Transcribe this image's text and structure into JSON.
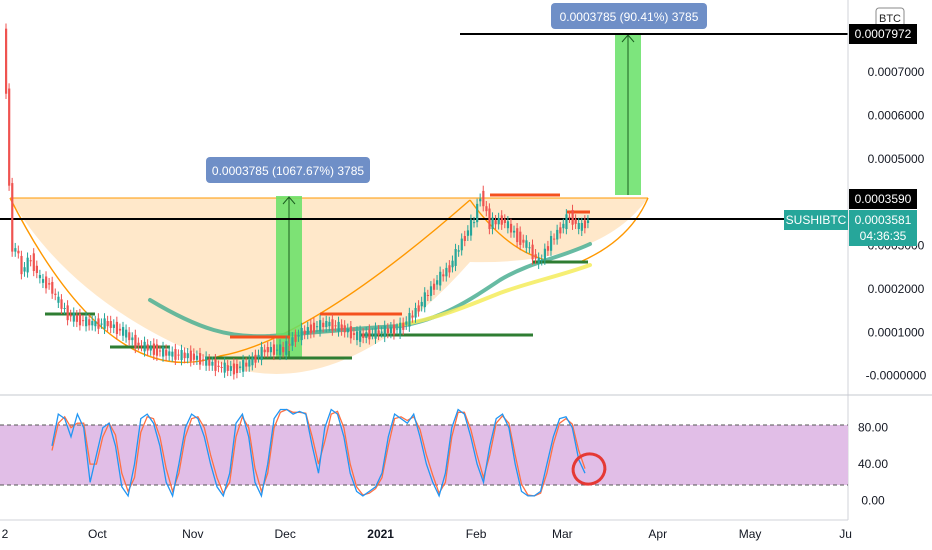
{
  "currency_badge": "BTC",
  "symbol_label": "SUSHIBTC",
  "current_price": "0.0003581",
  "countdown": "04:36:35",
  "resistance_price_label": "0.0003590",
  "target_price_label": "0.0007972",
  "colors": {
    "bull": "#26a69a",
    "bear": "#ef5350",
    "cup_fill": "#ffe0b8",
    "cup_line": "#ff9800",
    "measure_fill": "#66e066",
    "measure_label_bg": "#6f8fc7",
    "ma_fast": "#4caf93",
    "ma_slow": "#f5ec5c",
    "support_line": "#2e7d32",
    "resistance_marks": "#f4511e",
    "stoch_band": "#e1bee7",
    "stoch_k": "#2196f3",
    "stoch_d": "#ff7043",
    "annotation_circle": "#e53935",
    "symbol_tag_bg": "#26a69a"
  },
  "chart_data": [
    {
      "type": "line",
      "title": "SUSHIBTC",
      "x_ticks": [
        "2",
        "Oct",
        "Nov",
        "Dec",
        "2021",
        "Feb",
        "Mar",
        "Apr",
        "May",
        "Ju"
      ],
      "y_ticks": [
        "0.0007000",
        "0.0006000",
        "0.0005000",
        "0.0003000",
        "0.0002000",
        "0.0001000",
        "-0.0000000"
      ],
      "ylim": [
        -1e-05,
        0.00082
      ],
      "series": [
        {
          "points": [
            [
              "2020-09-01",
              0.0008
            ],
            [
              "2020-09-02",
              0.00065
            ],
            [
              "2020-09-03",
              0.00045
            ],
            [
              "2020-09-04",
              0.00028
            ],
            [
              "2020-09-05",
              0.0003
            ],
            [
              "2020-09-07",
              0.00024
            ],
            [
              "2020-09-10",
              0.00027
            ],
            [
              "2020-09-13",
              0.00022
            ],
            [
              "2020-09-16",
              0.00021
            ],
            [
              "2020-09-18",
              0.00018
            ],
            [
              "2020-09-22",
              0.00014
            ],
            [
              "2020-09-25",
              0.00013
            ],
            [
              "2020-09-30",
              0.00012
            ],
            [
              "2020-10-05",
              0.00012
            ],
            [
              "2020-10-10",
              0.0001
            ],
            [
              "2020-10-15",
              7e-05
            ],
            [
              "2020-10-20",
              6e-05
            ],
            [
              "2020-10-25",
              5e-05
            ],
            [
              "2020-11-01",
              4.5e-05
            ],
            [
              "2020-11-05",
              3.5e-05
            ],
            [
              "2020-11-10",
              2e-05
            ],
            [
              "2020-11-15",
              1.5e-05
            ],
            [
              "2020-11-20",
              3e-05
            ],
            [
              "2020-11-25",
              6e-05
            ],
            [
              "2020-12-01",
              6e-05
            ],
            [
              "2020-12-05",
              9e-05
            ],
            [
              "2020-12-10",
              0.00011
            ],
            [
              "2020-12-15",
              0.00012
            ],
            [
              "2020-12-20",
              0.00011
            ],
            [
              "2020-12-25",
              9e-05
            ],
            [
              "2021-01-01",
              0.0001
            ],
            [
              "2021-01-08",
              0.00011
            ],
            [
              "2021-01-12",
              0.00014
            ],
            [
              "2021-01-16",
              0.00018
            ],
            [
              "2021-01-20",
              0.00022
            ],
            [
              "2021-01-24",
              0.00025
            ],
            [
              "2021-01-28",
              0.00031
            ],
            [
              "2021-02-01",
              0.00036
            ],
            [
              "2021-02-03",
              0.00042
            ],
            [
              "2021-02-06",
              0.00035
            ],
            [
              "2021-02-10",
              0.00036
            ],
            [
              "2021-02-15",
              0.00032
            ],
            [
              "2021-02-18",
              0.0003
            ],
            [
              "2021-02-22",
              0.00026
            ],
            [
              "2021-02-25",
              0.0003
            ],
            [
              "2021-03-01",
              0.00034
            ],
            [
              "2021-03-04",
              0.00037
            ],
            [
              "2021-03-07",
              0.00034
            ],
            [
              "2021-03-10",
              0.000358
            ]
          ]
        }
      ],
      "annotations": [
        "0.0003785 (1067.67%) 3785",
        "0.0003785 (90.41%) 3785"
      ]
    },
    {
      "type": "line",
      "title": "",
      "y_ticks": [
        "80.00",
        "40.00",
        "0.00"
      ],
      "ylim": [
        -5,
        105
      ],
      "band": [
        20,
        80
      ],
      "series": [
        {
          "values": [
            60,
            95,
            90,
            70,
            95,
            80,
            20,
            50,
            80,
            85,
            60,
            15,
            5,
            40,
            90,
            95,
            85,
            60,
            20,
            5,
            40,
            80,
            95,
            90,
            70,
            40,
            15,
            5,
            30,
            85,
            95,
            70,
            20,
            5,
            40,
            90,
            100,
            100,
            95,
            98,
            95,
            60,
            30,
            80,
            100,
            95,
            70,
            30,
            10,
            5,
            10,
            15,
            30,
            70,
            95,
            90,
            85,
            95,
            70,
            40,
            20,
            5,
            30,
            80,
            100,
            95,
            70,
            40,
            20,
            60,
            90,
            95,
            80,
            40,
            10,
            5,
            5,
            10,
            40,
            70,
            90,
            92,
            80,
            45,
            30
          ]
        },
        {
          "values": [
            55,
            85,
            92,
            80,
            85,
            85,
            40,
            40,
            70,
            85,
            72,
            30,
            10,
            25,
            75,
            92,
            90,
            70,
            35,
            10,
            30,
            70,
            90,
            92,
            80,
            50,
            25,
            8,
            20,
            70,
            92,
            80,
            35,
            10,
            30,
            80,
            97,
            100,
            97,
            97,
            96,
            70,
            40,
            65,
            95,
            98,
            80,
            40,
            15,
            6,
            8,
            13,
            25,
            60,
            90,
            92,
            88,
            92,
            78,
            50,
            28,
            8,
            20,
            70,
            97,
            97,
            78,
            50,
            25,
            50,
            85,
            93,
            85,
            50,
            18,
            6,
            5,
            8,
            30,
            62,
            85,
            90,
            84,
            55,
            35
          ]
        }
      ]
    }
  ]
}
